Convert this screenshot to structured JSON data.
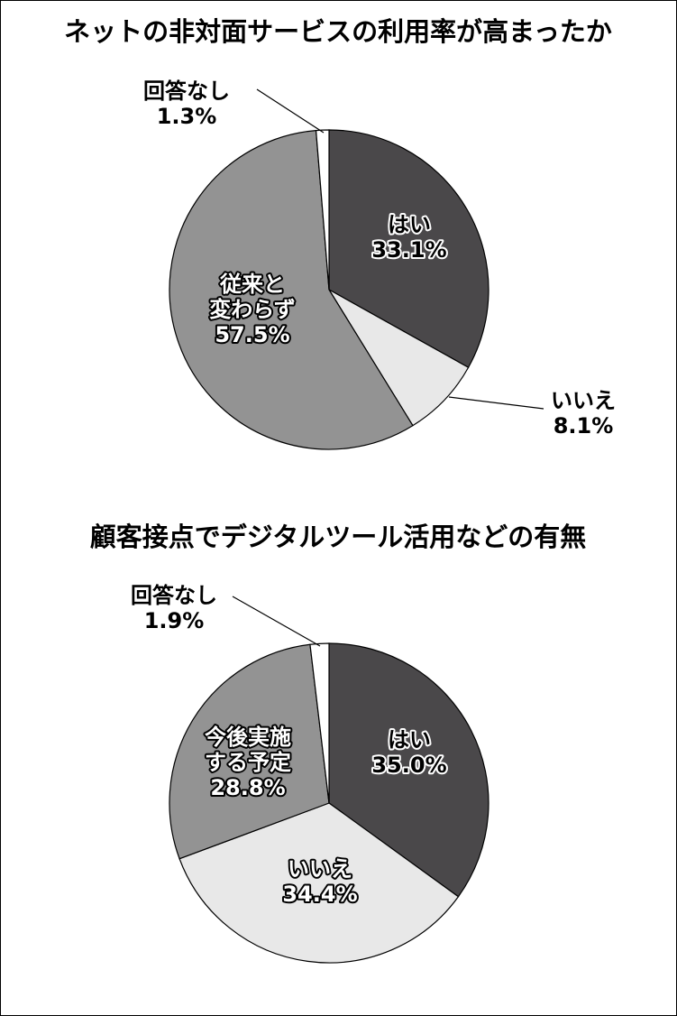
{
  "chart_data": [
    {
      "type": "pie",
      "title": "ネットの非対面サービスの利用率が高まったか",
      "slices": [
        {
          "label_lines": [
            "はい"
          ],
          "value": 33.1,
          "value_label": "33.1%",
          "color": "#4a484a"
        },
        {
          "label_lines": [
            "いいえ"
          ],
          "value": 8.1,
          "value_label": "8.1%",
          "color": "#e8e8e8"
        },
        {
          "label_lines": [
            "従来と",
            "変わらず"
          ],
          "value": 57.5,
          "value_label": "57.5%",
          "color": "#939393"
        },
        {
          "label_lines": [
            "回答なし"
          ],
          "value": 1.3,
          "value_label": "1.3%",
          "color": "#ffffff"
        }
      ]
    },
    {
      "type": "pie",
      "title": "顧客接点でデジタルツール活用などの有無",
      "slices": [
        {
          "label_lines": [
            "はい"
          ],
          "value": 35.0,
          "value_label": "35.0%",
          "color": "#4a484a"
        },
        {
          "label_lines": [
            "いいえ"
          ],
          "value": 34.4,
          "value_label": "34.4%",
          "color": "#e8e8e8"
        },
        {
          "label_lines": [
            "今後実施",
            "する予定"
          ],
          "value": 28.8,
          "value_label": "28.8%",
          "color": "#939393"
        },
        {
          "label_lines": [
            "回答なし"
          ],
          "value": 1.9,
          "value_label": "1.9%",
          "color": "#ffffff"
        }
      ]
    }
  ]
}
